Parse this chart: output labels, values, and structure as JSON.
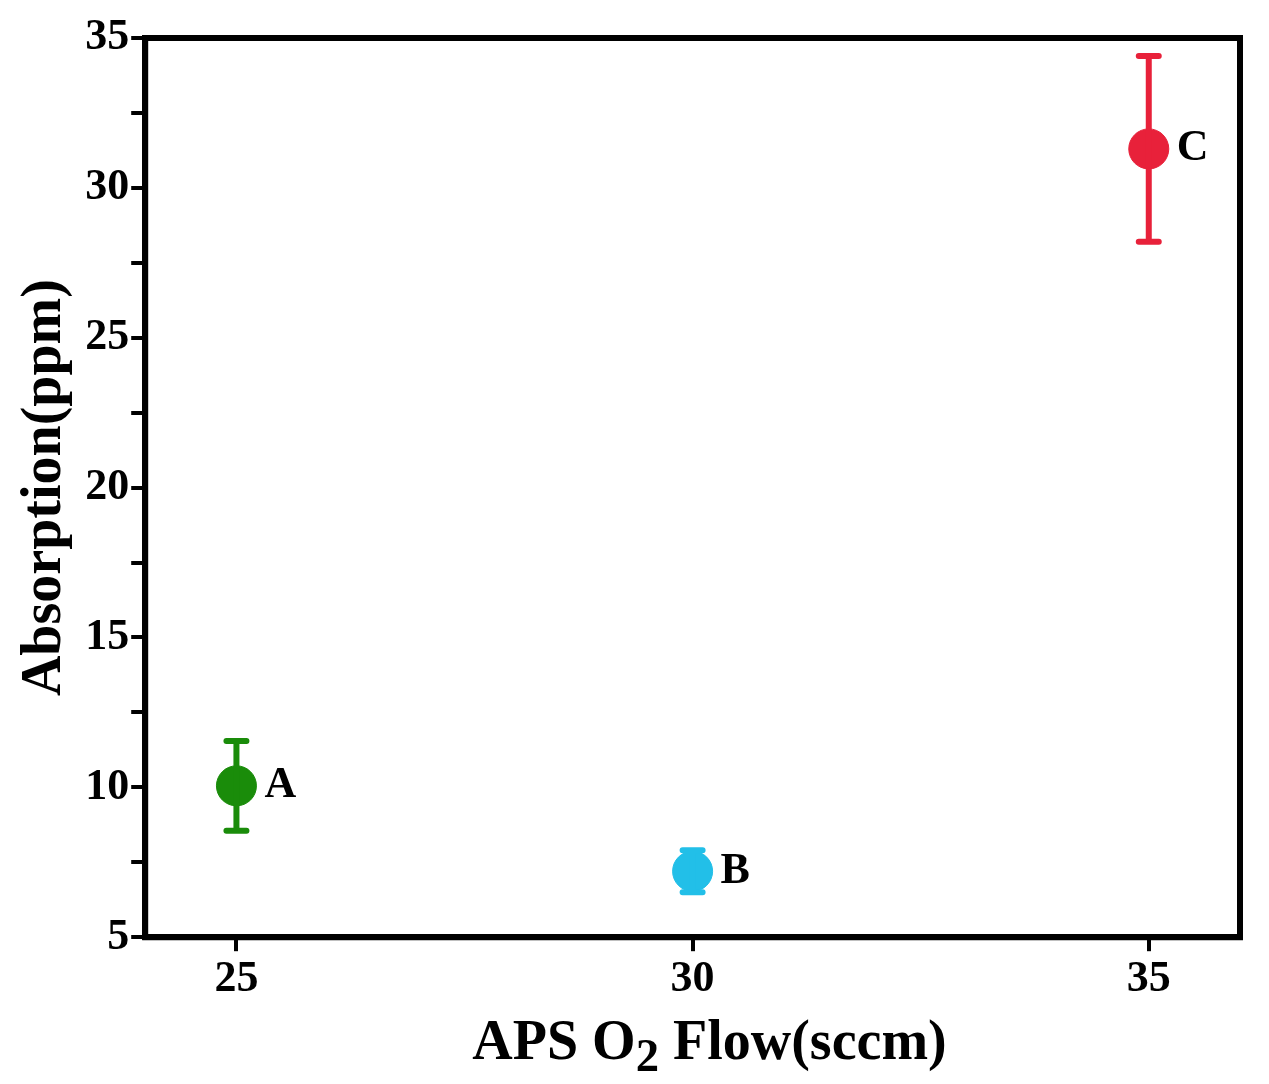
{
  "chart_data": {
    "type": "scatter",
    "xlabel": "APS O$_{2}$ Flow(sccm)",
    "ylabel": "Absorption(ppm)",
    "x": [
      25,
      30,
      35
    ],
    "values": [
      10.05,
      7.2,
      31.3
    ],
    "errors": [
      1.5,
      0.7,
      3.1
    ],
    "colors": [
      "#1a8c0a",
      "#22bfe8",
      "#e8213a"
    ],
    "marker": "circle",
    "xlim": [
      24,
      36
    ],
    "xticks": [
      25,
      30,
      35
    ],
    "ylim": [
      5,
      35
    ],
    "yticks": [
      5,
      {
        "value": 7.5,
        "label": null
      },
      10,
      {
        "value": 12.5,
        "label": null
      },
      15,
      {
        "value": 17.5,
        "label": null
      },
      20,
      {
        "value": 22.5,
        "label": null
      },
      25,
      {
        "value": 27.5,
        "label": null
      },
      30,
      {
        "value": 32.5,
        "label": null
      },
      35
    ],
    "grid": false,
    "legend": false,
    "annotations": [
      {
        "text": "A",
        "x": 25,
        "y": 10.05
      },
      {
        "text": "B",
        "x": 30,
        "y": 7.2
      },
      {
        "text": "C",
        "x": 35,
        "y": 31.3
      }
    ]
  }
}
